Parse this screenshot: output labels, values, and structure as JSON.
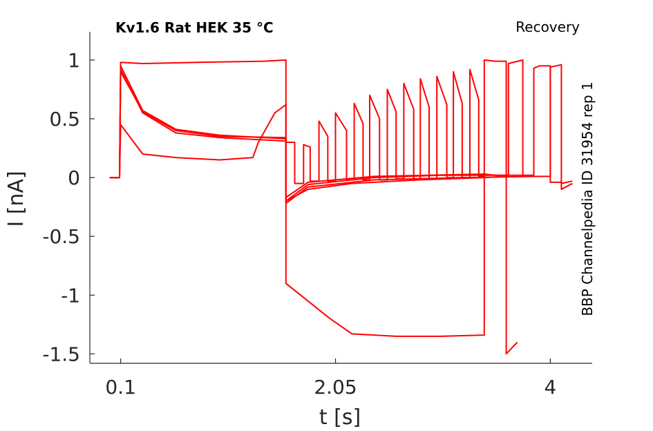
{
  "chart_data": {
    "type": "line",
    "title": "Kv1.6  Rat  HEK  35 °C",
    "protocol_label": "Recovery",
    "side_label": "BBP Channelpedia ID 31954 rep 1",
    "xlabel": "t [s]",
    "ylabel": "I [nA]",
    "xlim": [
      -0.18,
      4.38
    ],
    "ylim": [
      -1.58,
      1.24
    ],
    "x_ticks": [
      0.1,
      2.05,
      4
    ],
    "x_tick_labels": [
      "0.1",
      "2.05",
      "4"
    ],
    "y_ticks": [
      1,
      0.5,
      0,
      -0.5,
      -1,
      -1.5
    ],
    "y_tick_labels": [
      "1",
      "0.5",
      "0",
      "-0.5",
      "-1",
      "-1.5"
    ],
    "color": "#ff0000",
    "grid": false,
    "series": [
      {
        "values": [
          [
            0.0,
            0
          ],
          [
            0.09,
            0
          ],
          [
            0.1,
            0.98
          ],
          [
            0.3,
            0.97
          ],
          [
            0.8,
            0.98
          ],
          [
            1.4,
            0.99
          ],
          [
            1.6,
            1.0
          ],
          [
            1.6,
            -0.2
          ],
          [
            1.8,
            -0.1
          ],
          [
            2.2,
            -0.05
          ],
          [
            2.8,
            -0.02
          ],
          [
            3.4,
            0
          ],
          [
            3.6,
            0.01
          ]
        ]
      },
      {
        "values": [
          [
            0.0,
            0
          ],
          [
            0.09,
            0
          ],
          [
            0.1,
            0.95
          ],
          [
            0.3,
            0.57
          ],
          [
            0.6,
            0.41
          ],
          [
            1.0,
            0.36
          ],
          [
            1.6,
            0.33
          ],
          [
            1.6,
            -0.17
          ],
          [
            1.8,
            -0.04
          ],
          [
            2.4,
            0.01
          ],
          [
            3.4,
            0.03
          ],
          [
            3.5,
            0.02
          ],
          [
            3.62,
            0.02
          ],
          [
            3.62,
            0.97
          ],
          [
            3.75,
            1.0
          ],
          [
            3.75,
            0.01
          ],
          [
            3.8,
            0.01
          ]
        ]
      },
      {
        "values": [
          [
            0.0,
            0
          ],
          [
            0.09,
            0
          ],
          [
            0.1,
            0.92
          ],
          [
            0.3,
            0.55
          ],
          [
            0.6,
            0.38
          ],
          [
            1.0,
            0.34
          ],
          [
            1.6,
            0.31
          ],
          [
            1.6,
            -0.2
          ],
          [
            1.8,
            -0.06
          ],
          [
            2.4,
            0
          ],
          [
            3.0,
            0.02
          ],
          [
            3.8,
            0.02
          ],
          [
            3.85,
            0.02
          ],
          [
            3.85,
            0.93
          ],
          [
            3.9,
            0.95
          ],
          [
            4.0,
            0.95
          ],
          [
            4.0,
            -0.04
          ],
          [
            4.1,
            -0.04
          ],
          [
            4.1,
            -0.1
          ],
          [
            4.2,
            -0.05
          ]
        ]
      },
      {
        "values": [
          [
            0.0,
            0
          ],
          [
            0.09,
            0
          ],
          [
            0.1,
            0.9
          ],
          [
            0.3,
            0.56
          ],
          [
            0.6,
            0.4
          ],
          [
            1.0,
            0.35
          ],
          [
            1.6,
            0.34
          ],
          [
            1.6,
            -0.22
          ],
          [
            1.8,
            -0.08
          ],
          [
            2.4,
            -0.02
          ],
          [
            3.2,
            0
          ],
          [
            3.9,
            0.01
          ],
          [
            4.0,
            0.01
          ],
          [
            4.0,
            0.94
          ],
          [
            4.1,
            0.96
          ],
          [
            4.1,
            -0.05
          ],
          [
            4.2,
            -0.03
          ]
        ]
      },
      {
        "values": [
          [
            0.0,
            0
          ],
          [
            0.09,
            0
          ],
          [
            0.1,
            0.45
          ],
          [
            0.3,
            0.2
          ],
          [
            0.6,
            0.17
          ],
          [
            1.0,
            0.15
          ],
          [
            1.3,
            0.17
          ],
          [
            1.35,
            0.3
          ],
          [
            1.5,
            0.55
          ],
          [
            1.6,
            0.62
          ],
          [
            1.6,
            -0.9
          ],
          [
            1.8,
            -1.05
          ],
          [
            2.0,
            -1.2
          ],
          [
            2.2,
            -1.33
          ],
          [
            2.6,
            -1.35
          ],
          [
            3.0,
            -1.35
          ],
          [
            3.4,
            -1.34
          ],
          [
            3.4,
            1.0
          ],
          [
            3.5,
            0.99
          ],
          [
            3.6,
            0.99
          ],
          [
            3.6,
            -1.5
          ],
          [
            3.7,
            -1.4
          ]
        ]
      },
      {
        "values": [
          [
            1.6,
            0.33
          ],
          [
            1.6,
            0.3
          ],
          [
            1.68,
            0.3
          ],
          [
            1.68,
            -0.05
          ],
          [
            1.76,
            -0.05
          ],
          [
            1.76,
            0.28
          ],
          [
            1.82,
            0.26
          ],
          [
            1.82,
            -0.03
          ],
          [
            1.9,
            -0.03
          ],
          [
            1.9,
            0.48
          ],
          [
            1.98,
            0.35
          ],
          [
            1.98,
            -0.03
          ],
          [
            2.05,
            -0.03
          ],
          [
            2.05,
            0.55
          ],
          [
            2.15,
            0.4
          ],
          [
            2.15,
            -0.02
          ],
          [
            2.22,
            -0.02
          ],
          [
            2.22,
            0.63
          ],
          [
            2.3,
            0.46
          ],
          [
            2.3,
            -0.02
          ],
          [
            2.36,
            -0.02
          ],
          [
            2.36,
            0.7
          ],
          [
            2.45,
            0.5
          ],
          [
            2.45,
            -0.02
          ],
          [
            2.52,
            -0.02
          ],
          [
            2.52,
            0.75
          ],
          [
            2.6,
            0.56
          ],
          [
            2.6,
            -0.01
          ],
          [
            2.67,
            -0.01
          ],
          [
            2.67,
            0.8
          ],
          [
            2.76,
            0.58
          ],
          [
            2.76,
            -0.01
          ],
          [
            2.82,
            -0.01
          ],
          [
            2.82,
            0.84
          ],
          [
            2.9,
            0.6
          ],
          [
            2.9,
            -0.01
          ],
          [
            2.97,
            -0.01
          ],
          [
            2.97,
            0.86
          ],
          [
            3.06,
            0.62
          ],
          [
            3.06,
            0
          ],
          [
            3.12,
            0
          ],
          [
            3.12,
            0.9
          ],
          [
            3.2,
            0.63
          ],
          [
            3.2,
            0
          ],
          [
            3.27,
            0
          ],
          [
            3.27,
            0.92
          ],
          [
            3.35,
            0.66
          ],
          [
            3.35,
            0.01
          ],
          [
            3.4,
            0.01
          ]
        ]
      }
    ]
  }
}
